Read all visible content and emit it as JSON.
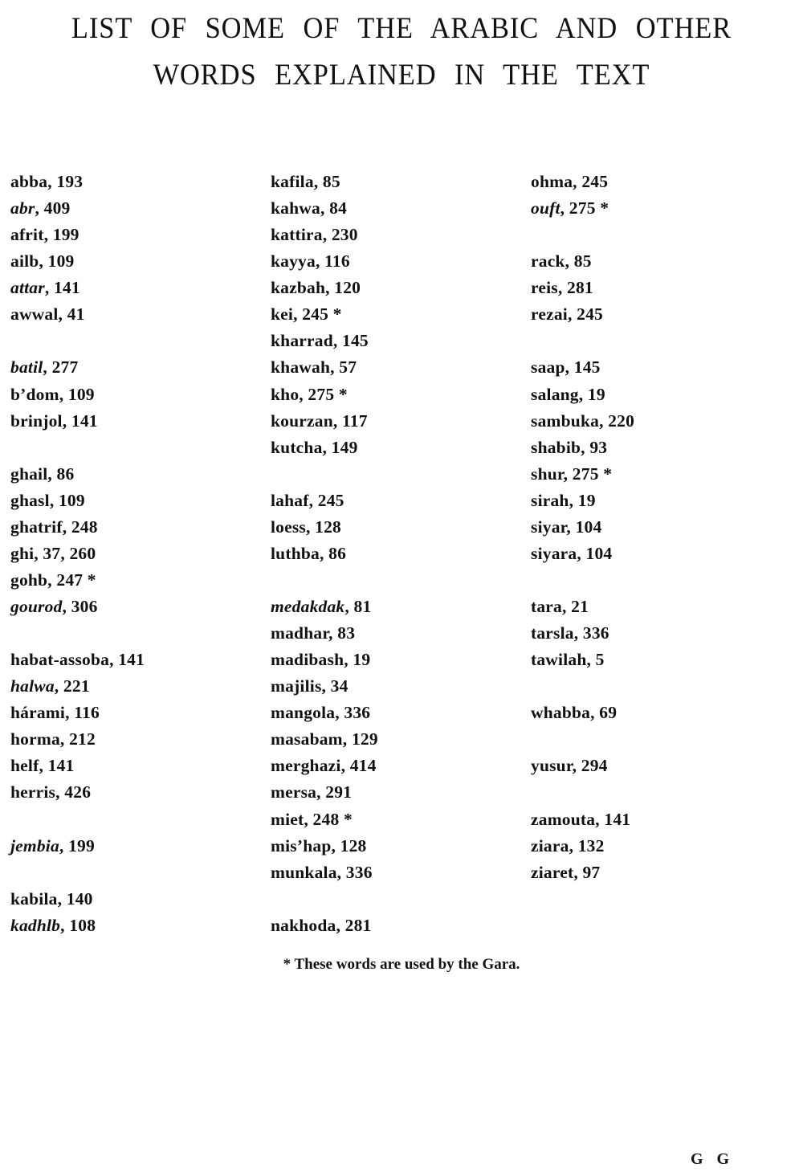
{
  "title": {
    "line1": "LIST OF SOME OF THE ARABIC AND OTHER",
    "line2": "WORDS EXPLAINED IN THE TEXT"
  },
  "columns": [
    [
      {
        "word": "abba",
        "ref": ", 193"
      },
      {
        "word": "abr",
        "ref": ", 409",
        "italic": true
      },
      {
        "word": "afrit",
        "ref": ", 199"
      },
      {
        "word": "ailb",
        "ref": ", 109"
      },
      {
        "word": "attar",
        "ref": ", 141",
        "italic": true
      },
      {
        "word": "awwal",
        "ref": ", 41"
      },
      null,
      {
        "word": "batil",
        "ref": ", 277",
        "italic": true
      },
      {
        "word": "b’dom",
        "ref": ", 109"
      },
      {
        "word": "brinjol",
        "ref": ", 141"
      },
      null,
      {
        "word": "ghail",
        "ref": ", 86"
      },
      {
        "word": "ghasl",
        "ref": ", 109"
      },
      {
        "word": "ghatrif",
        "ref": ", 248"
      },
      {
        "word": "ghi",
        "ref": ", 37, 260"
      },
      {
        "word": "gohb",
        "ref": ", 247 *"
      },
      {
        "word": "gourod",
        "ref": ", 306",
        "italic": true
      },
      null,
      {
        "word": "habat-assoba",
        "ref": ", 141"
      },
      {
        "word": "halwa",
        "ref": ", 221",
        "italic": true
      },
      {
        "word": "hárami",
        "ref": ", 116"
      },
      {
        "word": "horma",
        "ref": ", 212"
      },
      {
        "word": "helf",
        "ref": ", 141"
      },
      {
        "word": "herris",
        "ref": ", 426"
      },
      null,
      {
        "word": "jembia",
        "ref": ", 199",
        "italic": true
      },
      null,
      {
        "word": "kabila",
        "ref": ", 140"
      },
      {
        "word": "kadhlb",
        "ref": ", 108",
        "italic": true
      }
    ],
    [
      {
        "word": "kafila",
        "ref": ", 85"
      },
      {
        "word": "kahwa",
        "ref": ", 84"
      },
      {
        "word": "kattira",
        "ref": ", 230"
      },
      {
        "word": "kayya",
        "ref": ", 116"
      },
      {
        "word": "kazbah",
        "ref": ", 120"
      },
      {
        "word": "kei",
        "ref": ", 245 *"
      },
      {
        "word": "kharrad",
        "ref": ", 145"
      },
      {
        "word": "khawah",
        "ref": ", 57"
      },
      {
        "word": "kho",
        "ref": ", 275 *"
      },
      {
        "word": "kourzan",
        "ref": ", 117"
      },
      {
        "word": "kutcha",
        "ref": ", 149"
      },
      null,
      {
        "word": "lahaf",
        "ref": ", 245"
      },
      {
        "word": "loess",
        "ref": ", 128"
      },
      {
        "word": "luthba",
        "ref": ", 86"
      },
      null,
      {
        "word": "medakdak",
        "ref": ", 81",
        "italic": true
      },
      {
        "word": "madhar",
        "ref": ", 83"
      },
      {
        "word": "madibash",
        "ref": ", 19"
      },
      {
        "word": "majilis",
        "ref": ", 34"
      },
      {
        "word": "mangola",
        "ref": ", 336"
      },
      {
        "word": "masabam",
        "ref": ", 129"
      },
      {
        "word": "merghazi",
        "ref": ", 414"
      },
      {
        "word": "mersa",
        "ref": ", 291"
      },
      {
        "word": "miet",
        "ref": ", 248 *"
      },
      {
        "word": "mis’hap",
        "ref": ", 128"
      },
      {
        "word": "munkala",
        "ref": ", 336"
      },
      null,
      {
        "word": "nakhoda",
        "ref": ", 281"
      }
    ],
    [
      {
        "word": "ohma",
        "ref": ", 245"
      },
      {
        "word": "ouft",
        "ref": ", 275 *",
        "italic": true
      },
      null,
      {
        "word": "rack",
        "ref": ", 85"
      },
      {
        "word": "reis",
        "ref": ", 281"
      },
      {
        "word": "rezai",
        "ref": ", 245"
      },
      null,
      {
        "word": "saap",
        "ref": ", 145"
      },
      {
        "word": "salang",
        "ref": ", 19"
      },
      {
        "word": "sambuka",
        "ref": ", 220"
      },
      {
        "word": "shabib",
        "ref": ", 93"
      },
      {
        "word": "shur",
        "ref": ", 275 *"
      },
      {
        "word": "sirah",
        "ref": ", 19"
      },
      {
        "word": "siyar",
        "ref": ", 104"
      },
      {
        "word": "siyara",
        "ref": ", 104"
      },
      null,
      {
        "word": "tara",
        "ref": ", 21"
      },
      {
        "word": "tarsla",
        "ref": ", 336"
      },
      {
        "word": "tawilah",
        "ref": ", 5"
      },
      null,
      {
        "word": "whabba",
        "ref": ", 69"
      },
      null,
      {
        "word": "yusur",
        "ref": ", 294"
      },
      null,
      {
        "word": "zamouta",
        "ref": ", 141"
      },
      {
        "word": "ziara",
        "ref": ", 132"
      },
      {
        "word": "ziaret",
        "ref": ", 97"
      }
    ]
  ],
  "footnote": "* These words are used by the Gara.",
  "signature_mark": "G G"
}
